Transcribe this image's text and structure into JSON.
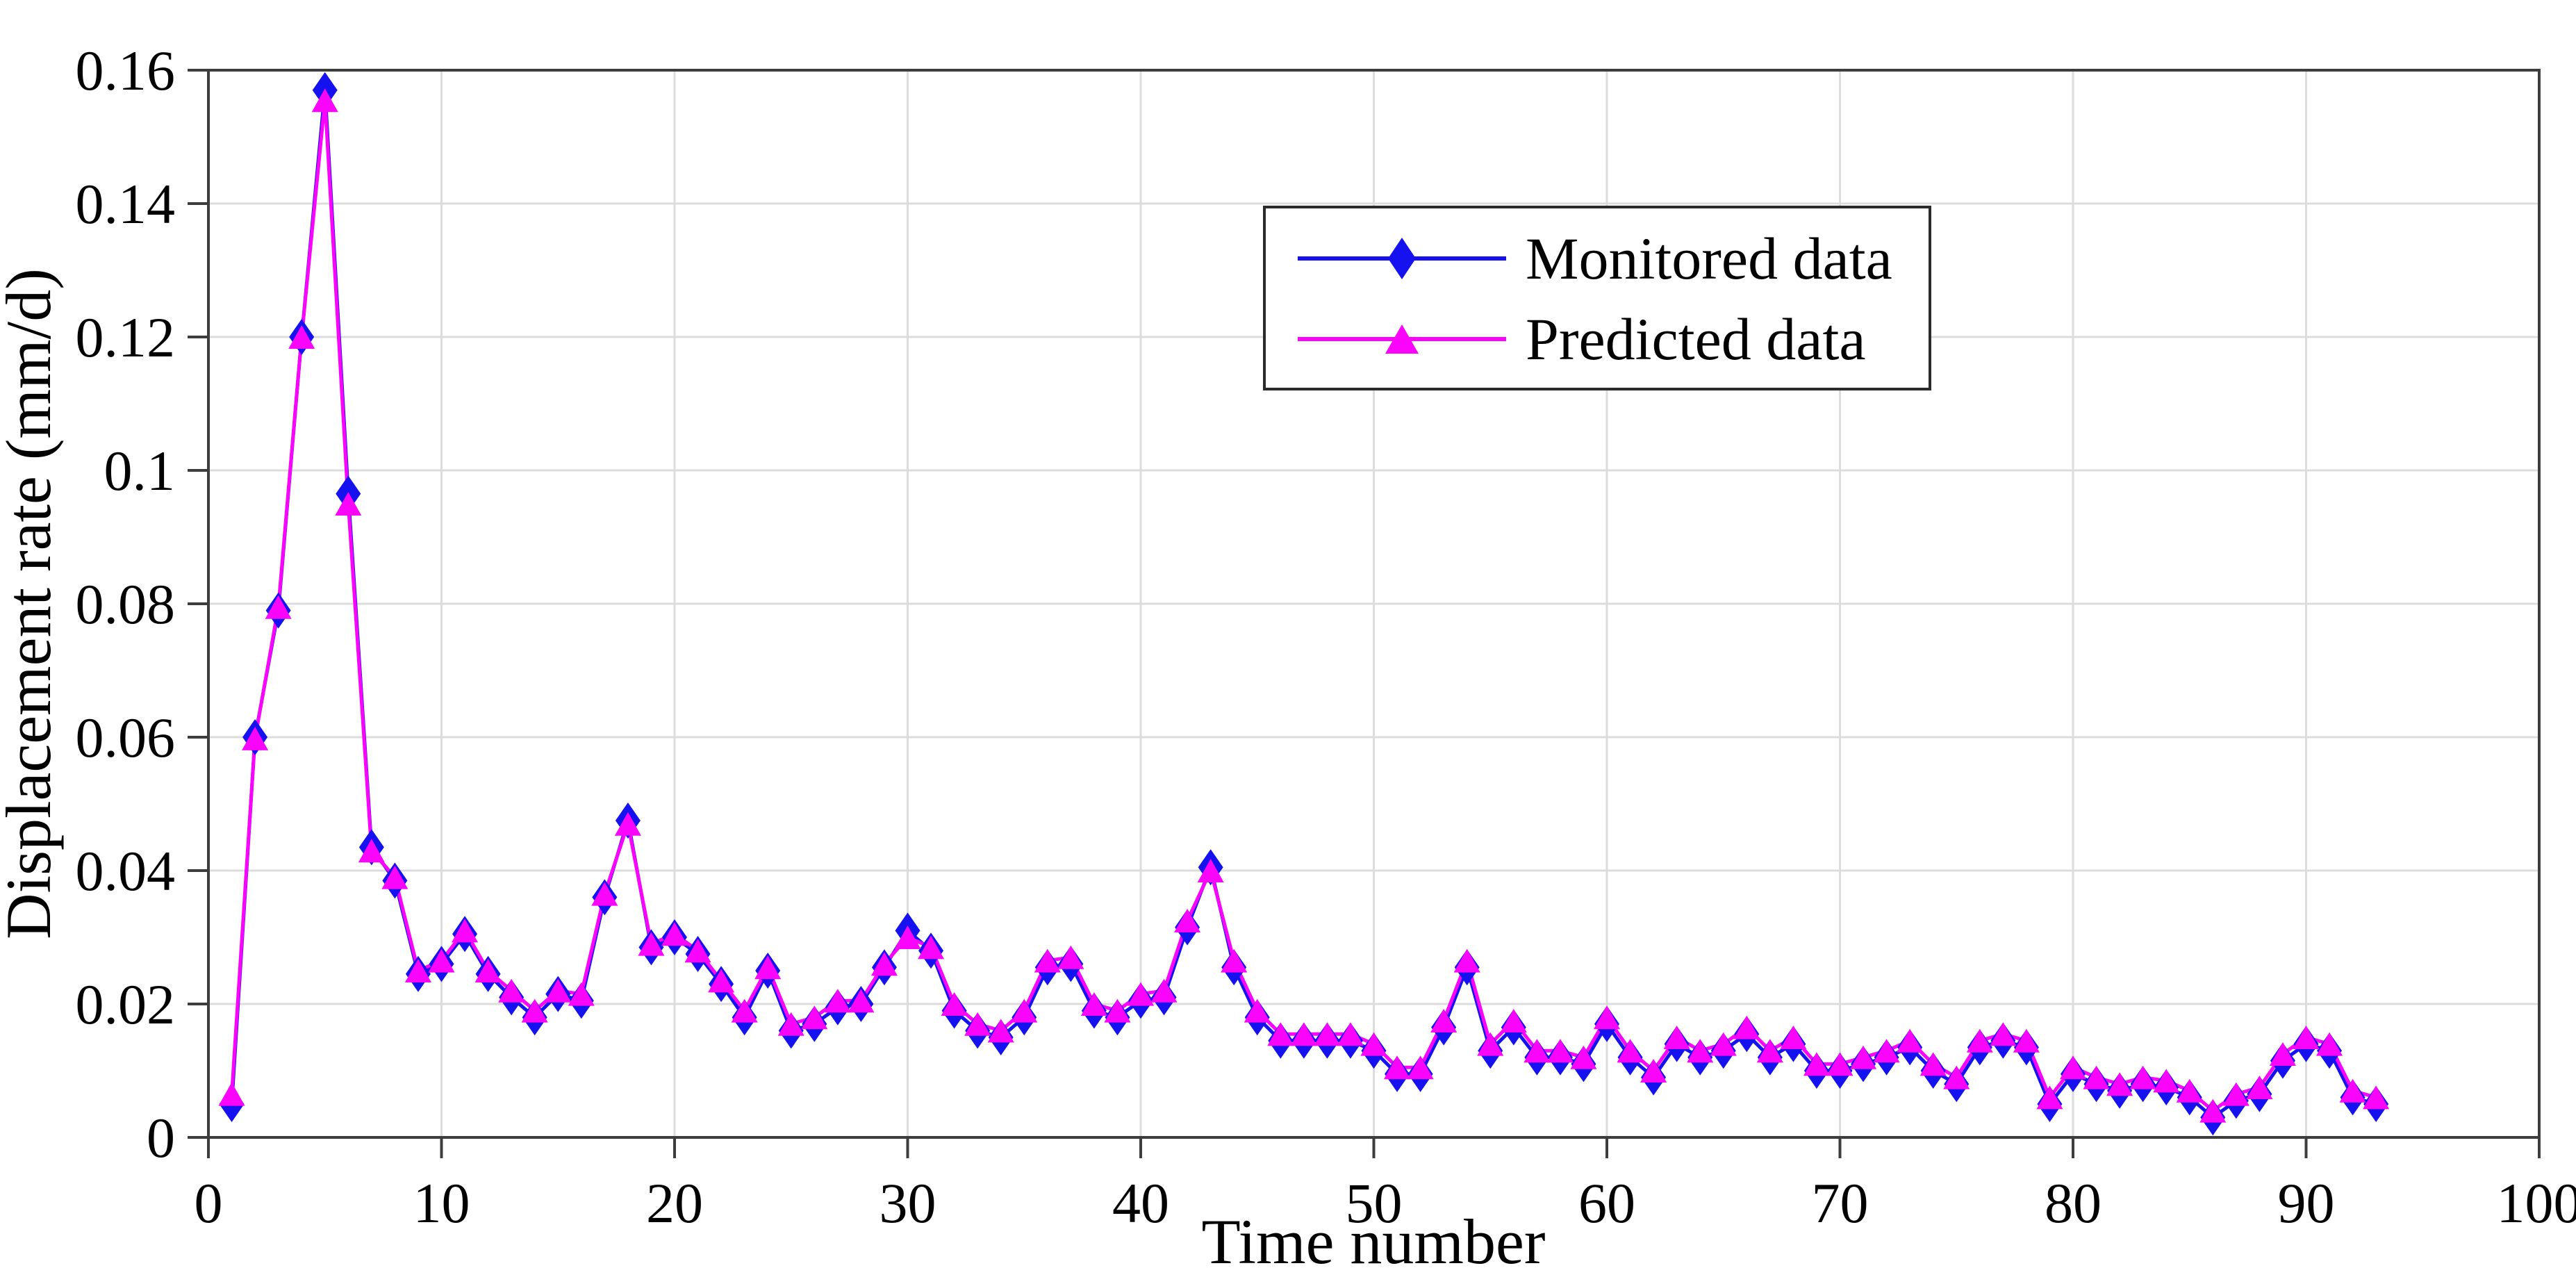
{
  "figure": {
    "background": "#ffffff"
  },
  "colors": {
    "grid": "#dcdcdc",
    "axis": "#3d3d3d",
    "tick_text": "#000000",
    "monitored": "#1612ef",
    "predicted": "#fb04fb",
    "legend_border": "#2b2b2b"
  },
  "chart_data": {
    "type": "line",
    "title": "",
    "xlabel": "Time number",
    "ylabel": "Displacement rate (mm/d)",
    "xlim": [
      0,
      100
    ],
    "ylim": [
      0,
      0.16
    ],
    "grid": true,
    "legend_position": "upper center-right inside box",
    "x_ticks": [
      "0",
      "10",
      "20",
      "30",
      "40",
      "50",
      "60",
      "70",
      "80",
      "90",
      "100"
    ],
    "y_ticks": [
      "0",
      "0.02",
      "0.04",
      "0.06",
      "0.08",
      "0.1",
      "0.12",
      "0.14",
      "0.16"
    ],
    "x": [
      1,
      2,
      3,
      4,
      5,
      6,
      7,
      8,
      9,
      10,
      11,
      12,
      13,
      14,
      15,
      16,
      17,
      18,
      19,
      20,
      21,
      22,
      23,
      24,
      25,
      26,
      27,
      28,
      29,
      30,
      31,
      32,
      33,
      34,
      35,
      36,
      37,
      38,
      39,
      40,
      41,
      42,
      43,
      44,
      45,
      46,
      47,
      48,
      49,
      50,
      51,
      52,
      53,
      54,
      55,
      56,
      57,
      58,
      59,
      60,
      61,
      62,
      63,
      64,
      65,
      66,
      67,
      68,
      69,
      70,
      71,
      72,
      73,
      74,
      75,
      76,
      77,
      78,
      79,
      80,
      81,
      82,
      83,
      84,
      85,
      86,
      87,
      88,
      89,
      90,
      91,
      92,
      93
    ],
    "series": [
      {
        "name": "Monitored data",
        "marker": "diamond",
        "color": "#1612ef",
        "values": [
          0.005,
          0.06,
          0.079,
          0.12,
          0.157,
          0.0965,
          0.0435,
          0.0385,
          0.0245,
          0.026,
          0.0305,
          0.0245,
          0.021,
          0.018,
          0.0215,
          0.0205,
          0.036,
          0.0475,
          0.0285,
          0.03,
          0.0275,
          0.023,
          0.018,
          0.025,
          0.016,
          0.017,
          0.0195,
          0.02,
          0.0255,
          0.031,
          0.028,
          0.019,
          0.016,
          0.015,
          0.018,
          0.0255,
          0.026,
          0.019,
          0.018,
          0.0205,
          0.021,
          0.0315,
          0.0405,
          0.0255,
          0.018,
          0.0145,
          0.0145,
          0.0145,
          0.0145,
          0.013,
          0.0095,
          0.0095,
          0.0165,
          0.0255,
          0.013,
          0.0165,
          0.012,
          0.012,
          0.011,
          0.017,
          0.012,
          0.009,
          0.014,
          0.012,
          0.013,
          0.0155,
          0.012,
          0.014,
          0.01,
          0.01,
          0.011,
          0.012,
          0.0135,
          0.01,
          0.008,
          0.0135,
          0.0145,
          0.0135,
          0.005,
          0.0095,
          0.008,
          0.007,
          0.008,
          0.0075,
          0.006,
          0.003,
          0.0055,
          0.0065,
          0.0115,
          0.014,
          0.013,
          0.006,
          0.005
        ]
      },
      {
        "name": "Predicted data",
        "marker": "triangle",
        "color": "#fb04fb",
        "values": [
          0.0065,
          0.0598,
          0.0795,
          0.12,
          0.1555,
          0.095,
          0.043,
          0.039,
          0.025,
          0.0265,
          0.031,
          0.025,
          0.022,
          0.019,
          0.022,
          0.0215,
          0.0365,
          0.047,
          0.029,
          0.0305,
          0.028,
          0.0235,
          0.019,
          0.0255,
          0.017,
          0.018,
          0.0205,
          0.0205,
          0.026,
          0.03,
          0.0285,
          0.02,
          0.017,
          0.016,
          0.019,
          0.0265,
          0.027,
          0.02,
          0.019,
          0.0215,
          0.022,
          0.0325,
          0.04,
          0.0265,
          0.019,
          0.0155,
          0.0155,
          0.0155,
          0.0155,
          0.014,
          0.0105,
          0.0105,
          0.0175,
          0.0265,
          0.014,
          0.0175,
          0.013,
          0.013,
          0.012,
          0.018,
          0.013,
          0.01,
          0.015,
          0.013,
          0.014,
          0.0165,
          0.013,
          0.015,
          0.011,
          0.011,
          0.012,
          0.013,
          0.0145,
          0.011,
          0.009,
          0.0145,
          0.0155,
          0.0145,
          0.006,
          0.0105,
          0.009,
          0.008,
          0.009,
          0.0085,
          0.007,
          0.004,
          0.0065,
          0.0075,
          0.0125,
          0.015,
          0.014,
          0.007,
          0.006
        ]
      }
    ]
  }
}
